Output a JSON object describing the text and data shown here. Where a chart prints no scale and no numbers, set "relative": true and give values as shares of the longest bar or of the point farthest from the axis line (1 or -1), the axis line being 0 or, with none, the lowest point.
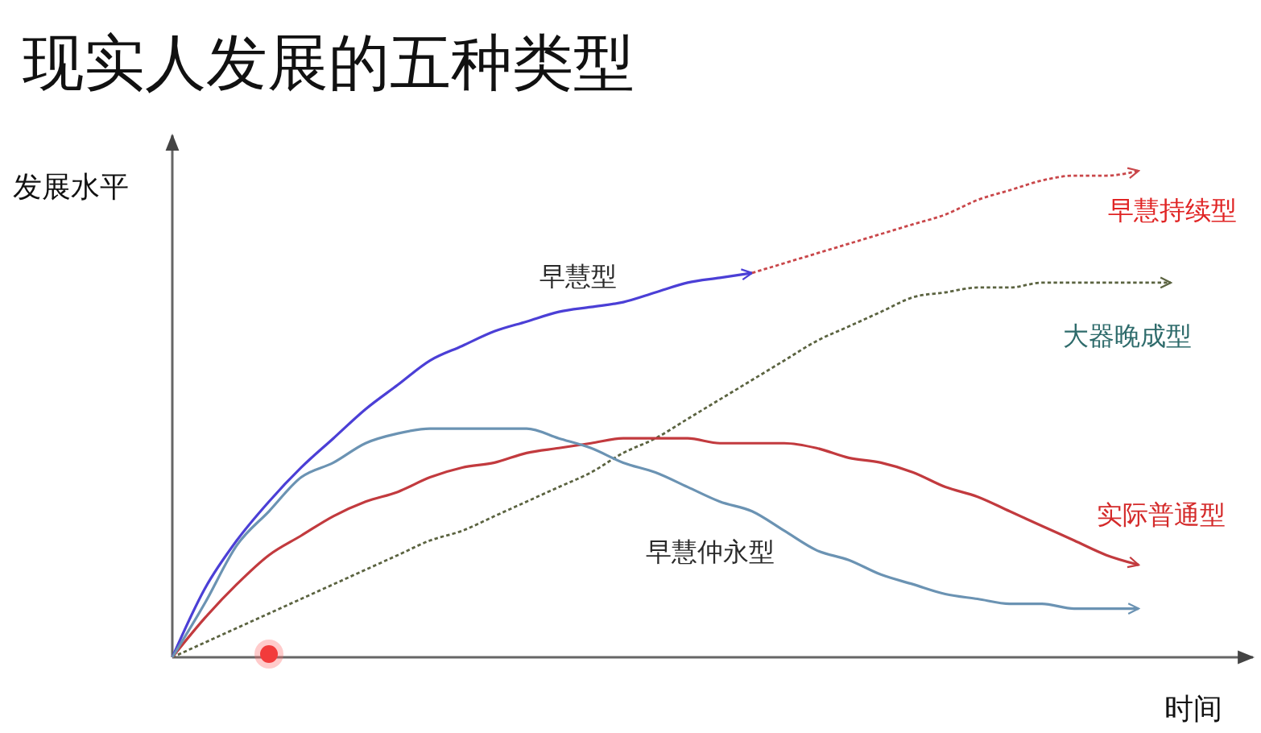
{
  "chart_data": {
    "type": "line",
    "title": "现实人发展的五种类型",
    "xlabel": "时间",
    "ylabel": "发展水平",
    "relative": true,
    "categories": [
      null,
      null,
      null,
      null,
      null,
      null,
      null,
      null,
      null,
      null,
      null,
      null,
      null,
      null,
      null,
      null,
      null,
      null,
      null,
      null,
      null,
      null,
      null,
      null,
      null,
      null,
      null,
      null,
      null,
      null,
      null,
      null
    ],
    "series": [
      {
        "name": "早慧型",
        "color": "#4b3fd6",
        "values": [
          0,
          0.14,
          0.24,
          0.32,
          0.39,
          0.45,
          0.51,
          0.56,
          0.61,
          0.64,
          0.67,
          0.69,
          0.71,
          0.72,
          0.73,
          0.75,
          0.77,
          0.78,
          0.79,
          null,
          null,
          null,
          null,
          null,
          null,
          null,
          null,
          null,
          null,
          null,
          null,
          null
        ]
      },
      {
        "name": "早慧持续型",
        "color": "#c9474a",
        "line_style": "dotted",
        "values": [
          null,
          null,
          null,
          null,
          null,
          null,
          null,
          null,
          null,
          null,
          null,
          null,
          null,
          null,
          null,
          null,
          null,
          null,
          0.79,
          0.81,
          0.83,
          0.85,
          0.87,
          0.89,
          0.91,
          0.94,
          0.96,
          0.98,
          0.99,
          0.99,
          1,
          null
        ]
      },
      {
        "name": "大器晚成型",
        "color": "#5b6340",
        "line_style": "dotted",
        "values": [
          0,
          0.03,
          0.06,
          0.09,
          0.12,
          0.15,
          0.18,
          0.21,
          0.24,
          0.26,
          0.29,
          0.32,
          0.35,
          0.38,
          0.42,
          0.45,
          0.49,
          0.53,
          0.57,
          0.61,
          0.65,
          0.68,
          0.71,
          0.74,
          0.75,
          0.76,
          0.76,
          0.77,
          0.77,
          0.77,
          0.77,
          0.77
        ]
      },
      {
        "name": "实际普通型",
        "color": "#c23a3e",
        "values": [
          0,
          0.08,
          0.15,
          0.21,
          0.25,
          0.29,
          0.32,
          0.34,
          0.37,
          0.39,
          0.4,
          0.42,
          0.43,
          0.44,
          0.45,
          0.45,
          0.45,
          0.44,
          0.44,
          0.44,
          0.43,
          0.41,
          0.4,
          0.38,
          0.35,
          0.33,
          0.3,
          0.27,
          0.24,
          0.21,
          0.19,
          null
        ]
      },
      {
        "name": "早慧仲永型",
        "color": "#6b93b3",
        "values": [
          0,
          0.11,
          0.23,
          0.3,
          0.37,
          0.4,
          0.44,
          0.46,
          0.47,
          0.47,
          0.47,
          0.47,
          0.45,
          0.43,
          0.4,
          0.38,
          0.35,
          0.32,
          0.3,
          0.26,
          0.22,
          0.2,
          0.17,
          0.15,
          0.13,
          0.12,
          0.11,
          0.11,
          0.1,
          0.1,
          0.1,
          null
        ]
      }
    ]
  }
}
